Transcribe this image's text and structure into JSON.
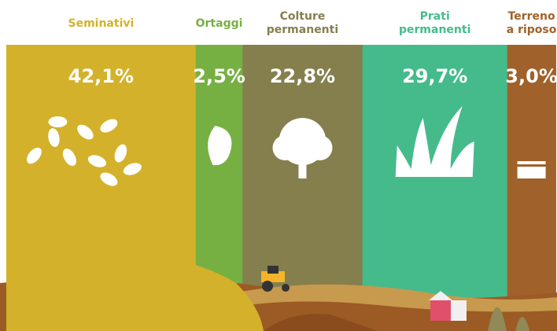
{
  "chart_data": {
    "type": "mosaic",
    "categories": [
      "Seminativi",
      "Ortaggi",
      "Colture permanenti",
      "Prati permanenti",
      "Terreno a riposo"
    ],
    "values": [
      42.1,
      2.5,
      22.8,
      29.7,
      3.0
    ],
    "value_labels": [
      "42,1%",
      "2,5%",
      "22,8%",
      "29,7%",
      "3,0%"
    ],
    "colors": [
      "#d4b12a",
      "#76b043",
      "#857f4e",
      "#45bb8c",
      "#a0612a"
    ]
  }
}
